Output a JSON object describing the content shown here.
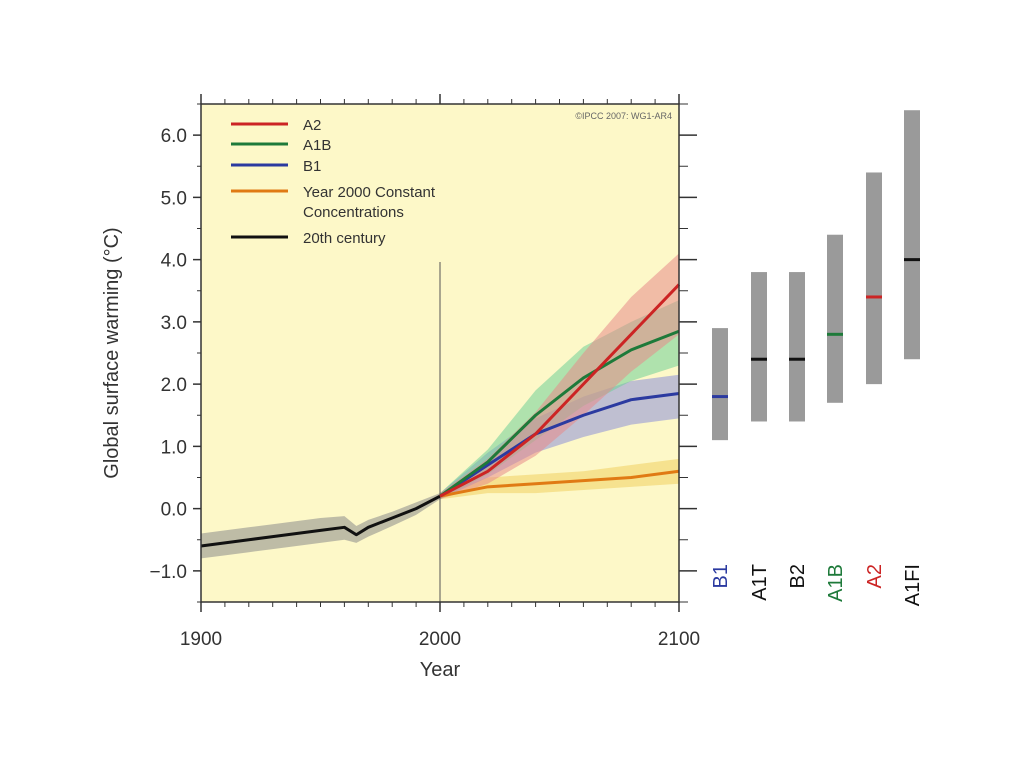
{
  "chart_data": {
    "type": "line",
    "credit": "©IPCC 2007: WG1-AR4",
    "xlabel": "Year",
    "ylabel": "Global surface warming (°C)",
    "xlim": [
      1900,
      2100
    ],
    "ylim": [
      -1.5,
      6.5
    ],
    "x_ticks": [
      1900,
      2000,
      2100
    ],
    "y_ticks": [
      "-1.0",
      "0.0",
      "1.0",
      "2.0",
      "3.0",
      "4.0",
      "5.0",
      "6.0"
    ],
    "grid": false,
    "legend_position": "top-left",
    "background_color": "#fdf8c8",
    "series": [
      {
        "name": "A2",
        "color": "#cc2424",
        "band_color": "#e88a8a",
        "x": [
          2000,
          2020,
          2040,
          2060,
          2080,
          2100
        ],
        "values": [
          0.2,
          0.6,
          1.2,
          2.0,
          2.8,
          3.6
        ],
        "lower": [
          0.15,
          0.4,
          0.85,
          1.5,
          2.2,
          2.8
        ],
        "upper": [
          0.25,
          0.8,
          1.55,
          2.5,
          3.4,
          4.1
        ]
      },
      {
        "name": "A1B",
        "color": "#1e7a3a",
        "band_color": "#6fcf97",
        "x": [
          2000,
          2020,
          2040,
          2060,
          2080,
          2100
        ],
        "values": [
          0.2,
          0.75,
          1.5,
          2.1,
          2.55,
          2.85
        ],
        "lower": [
          0.15,
          0.55,
          1.1,
          1.65,
          2.05,
          2.3
        ],
        "upper": [
          0.25,
          0.95,
          1.9,
          2.6,
          3.0,
          3.35
        ]
      },
      {
        "name": "B1",
        "color": "#2b3aa0",
        "band_color": "#8d90d8",
        "x": [
          2000,
          2020,
          2040,
          2060,
          2080,
          2100
        ],
        "values": [
          0.2,
          0.7,
          1.2,
          1.5,
          1.75,
          1.85
        ],
        "lower": [
          0.15,
          0.5,
          0.9,
          1.15,
          1.35,
          1.45
        ],
        "upper": [
          0.25,
          0.9,
          1.45,
          1.8,
          2.05,
          2.15
        ]
      },
      {
        "name": "Year 2000 Constant Concentrations",
        "color": "#e07a14",
        "band_color": "#f0d060",
        "x": [
          2000,
          2020,
          2040,
          2060,
          2080,
          2100
        ],
        "values": [
          0.2,
          0.35,
          0.4,
          0.45,
          0.5,
          0.6
        ],
        "lower": [
          0.15,
          0.25,
          0.25,
          0.3,
          0.35,
          0.4
        ],
        "upper": [
          0.25,
          0.5,
          0.55,
          0.6,
          0.7,
          0.8
        ]
      },
      {
        "name": "20th century",
        "color": "#111111",
        "band_color": "#8a8a8a",
        "x": [
          1900,
          1910,
          1920,
          1930,
          1940,
          1950,
          1960,
          1965,
          1970,
          1980,
          1990,
          2000
        ],
        "values": [
          -0.6,
          -0.55,
          -0.5,
          -0.45,
          -0.4,
          -0.35,
          -0.3,
          -0.42,
          -0.3,
          -0.15,
          0.0,
          0.2
        ],
        "lower": [
          -0.8,
          -0.75,
          -0.7,
          -0.65,
          -0.6,
          -0.55,
          -0.5,
          -0.55,
          -0.45,
          -0.28,
          -0.1,
          0.15
        ],
        "upper": [
          -0.4,
          -0.35,
          -0.3,
          -0.25,
          -0.2,
          -0.15,
          -0.12,
          -0.28,
          -0.18,
          -0.05,
          0.1,
          0.25
        ]
      }
    ],
    "ranges_2100": [
      {
        "name": "B1",
        "low": 1.1,
        "high": 2.9,
        "best": 1.8,
        "color": "#2b3aa0"
      },
      {
        "name": "A1T",
        "low": 1.4,
        "high": 3.8,
        "best": 2.4,
        "color": "#111111"
      },
      {
        "name": "B2",
        "low": 1.4,
        "high": 3.8,
        "best": 2.4,
        "color": "#111111"
      },
      {
        "name": "A1B",
        "low": 1.7,
        "high": 4.4,
        "best": 2.8,
        "color": "#1e7a3a"
      },
      {
        "name": "A2",
        "low": 2.0,
        "high": 5.4,
        "best": 3.4,
        "color": "#cc2424"
      },
      {
        "name": "A1FI",
        "low": 2.4,
        "high": 6.4,
        "best": 4.0,
        "color": "#111111"
      }
    ]
  }
}
